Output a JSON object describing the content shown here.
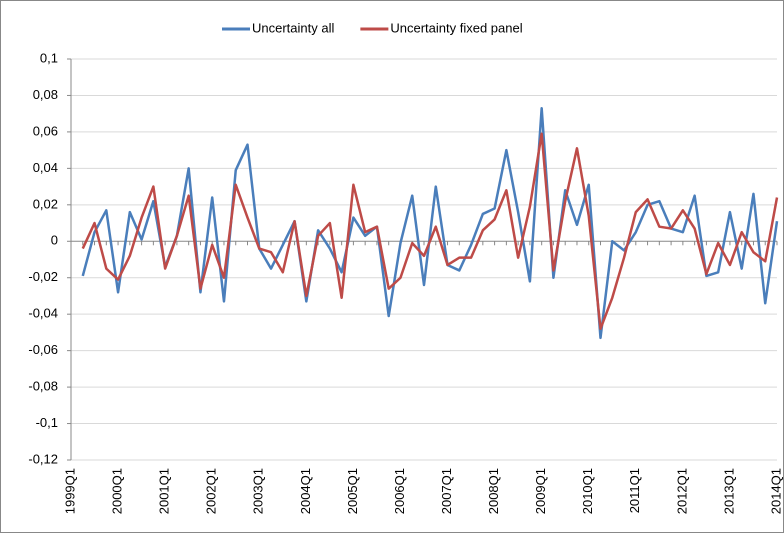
{
  "chart_data": {
    "type": "line",
    "categories": [
      "1999Q1",
      null,
      null,
      null,
      "2000Q1",
      null,
      null,
      null,
      "2001Q1",
      null,
      null,
      null,
      "2002Q1",
      null,
      null,
      null,
      "2003Q1",
      null,
      null,
      null,
      "2004Q1",
      null,
      null,
      null,
      "2005Q1",
      null,
      null,
      null,
      "2006Q1",
      null,
      null,
      null,
      "2007Q1",
      null,
      null,
      null,
      "2008Q1",
      null,
      null,
      null,
      "2009Q1",
      null,
      null,
      null,
      "2010Q1",
      null,
      null,
      null,
      "2011Q1",
      null,
      null,
      null,
      "2012Q1",
      null,
      null,
      null,
      "2013Q1",
      null,
      null,
      null,
      "2014Q1"
    ],
    "series": [
      {
        "name": "Uncertainty all",
        "color": "#4a7ebb",
        "values": [
          null,
          -0.019,
          0.005,
          0.017,
          -0.028,
          0.016,
          0.001,
          0.022,
          -0.014,
          0.003,
          0.04,
          -0.028,
          0.024,
          -0.033,
          0.039,
          0.053,
          -0.004,
          -0.015,
          -0.002,
          0.011,
          -0.033,
          0.006,
          -0.004,
          -0.017,
          0.013,
          0.003,
          0.008,
          -0.041,
          -0.001,
          0.025,
          -0.024,
          0.03,
          -0.013,
          -0.016,
          -0.002,
          0.015,
          0.018,
          0.05,
          0.016,
          -0.022,
          0.073,
          -0.02,
          0.028,
          0.009,
          0.031,
          -0.053,
          0.0,
          -0.005,
          0.005,
          0.02,
          0.022,
          0.007,
          0.005,
          0.025,
          -0.019,
          -0.017,
          0.016,
          -0.015,
          0.026,
          -0.034,
          0.011
        ]
      },
      {
        "name": "Uncertainty fixed panel",
        "color": "#be4b48",
        "values": [
          null,
          -0.004,
          0.01,
          -0.015,
          -0.021,
          -0.008,
          0.013,
          0.03,
          -0.015,
          0.003,
          0.025,
          -0.026,
          -0.002,
          -0.02,
          0.031,
          0.013,
          -0.004,
          -0.006,
          -0.017,
          0.011,
          -0.03,
          0.003,
          0.01,
          -0.031,
          0.031,
          0.005,
          0.008,
          -0.026,
          -0.02,
          -0.001,
          -0.008,
          0.008,
          -0.013,
          -0.009,
          -0.009,
          0.006,
          0.012,
          0.028,
          -0.009,
          0.019,
          0.059,
          -0.016,
          0.022,
          0.051,
          0.014,
          -0.048,
          -0.031,
          -0.009,
          0.016,
          0.023,
          0.008,
          0.007,
          0.017,
          0.007,
          -0.018,
          -0.001,
          -0.013,
          0.005,
          -0.006,
          -0.011,
          0.024
        ]
      }
    ],
    "ylim": [
      -0.12,
      0.1
    ],
    "yticks": [
      {
        "value": -0.12,
        "label": "-0,12"
      },
      {
        "value": -0.1,
        "label": "-0,1"
      },
      {
        "value": -0.08,
        "label": "-0,08"
      },
      {
        "value": -0.06,
        "label": "-0,06"
      },
      {
        "value": -0.04,
        "label": "-0,04"
      },
      {
        "value": -0.02,
        "label": "-0,02"
      },
      0,
      {
        "value": 0.02,
        "label": "0,02"
      },
      {
        "value": 0.04,
        "label": "0,04"
      },
      {
        "value": 0.06,
        "label": "0,06"
      },
      {
        "value": 0.08,
        "label": "0,08"
      },
      {
        "value": 0.1,
        "label": "0,1"
      }
    ],
    "grid": true,
    "legend": "top"
  }
}
